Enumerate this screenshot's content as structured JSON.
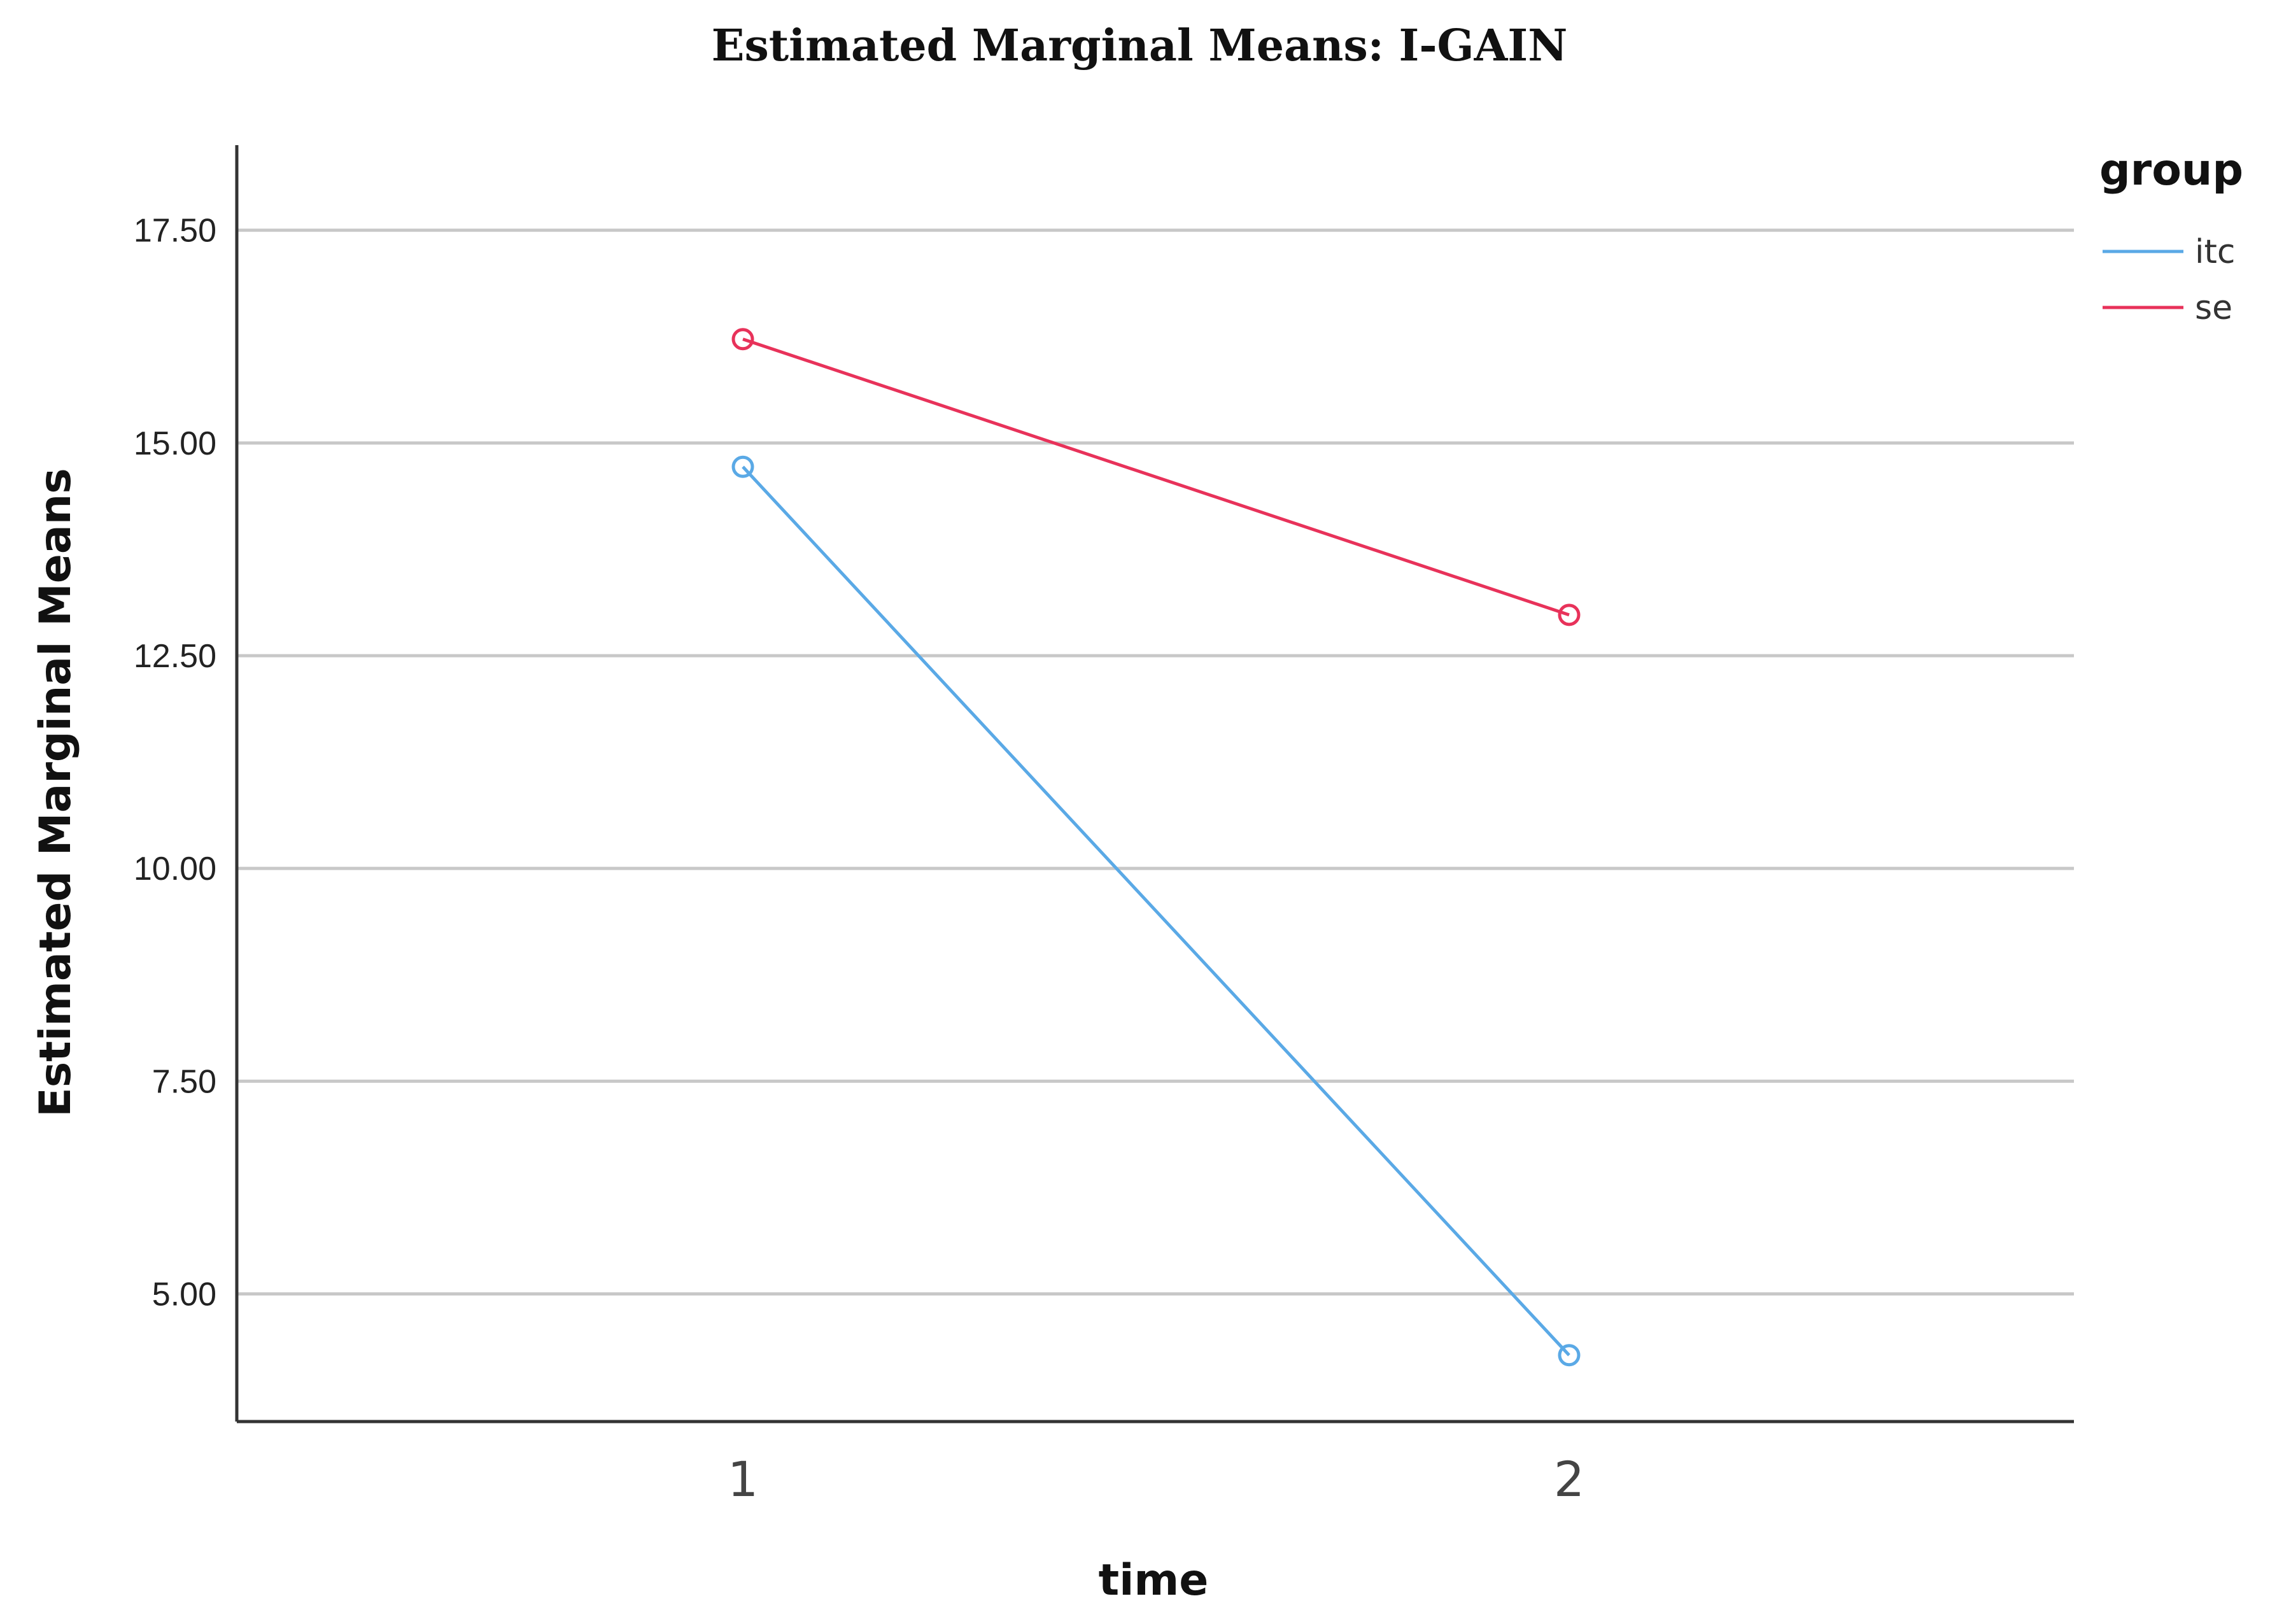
{
  "chart_data": {
    "type": "line",
    "title": "Estimated Marginal Means: I-GAIN",
    "xlabel": "time",
    "ylabel": "Estimated Marginal Means",
    "categories": [
      "1",
      "2"
    ],
    "y_ticks": [
      "5.00",
      "7.50",
      "10.00",
      "12.50",
      "15.00",
      "17.50"
    ],
    "ylim": [
      3.5,
      18.5
    ],
    "grid": true,
    "legend": {
      "title": "group",
      "position": "top-right"
    },
    "series": [
      {
        "name": "itc",
        "color": "#5aa9e6",
        "values": [
          14.72,
          4.28
        ]
      },
      {
        "name": "se",
        "color": "#e8325a",
        "values": [
          16.22,
          12.98
        ]
      }
    ]
  }
}
